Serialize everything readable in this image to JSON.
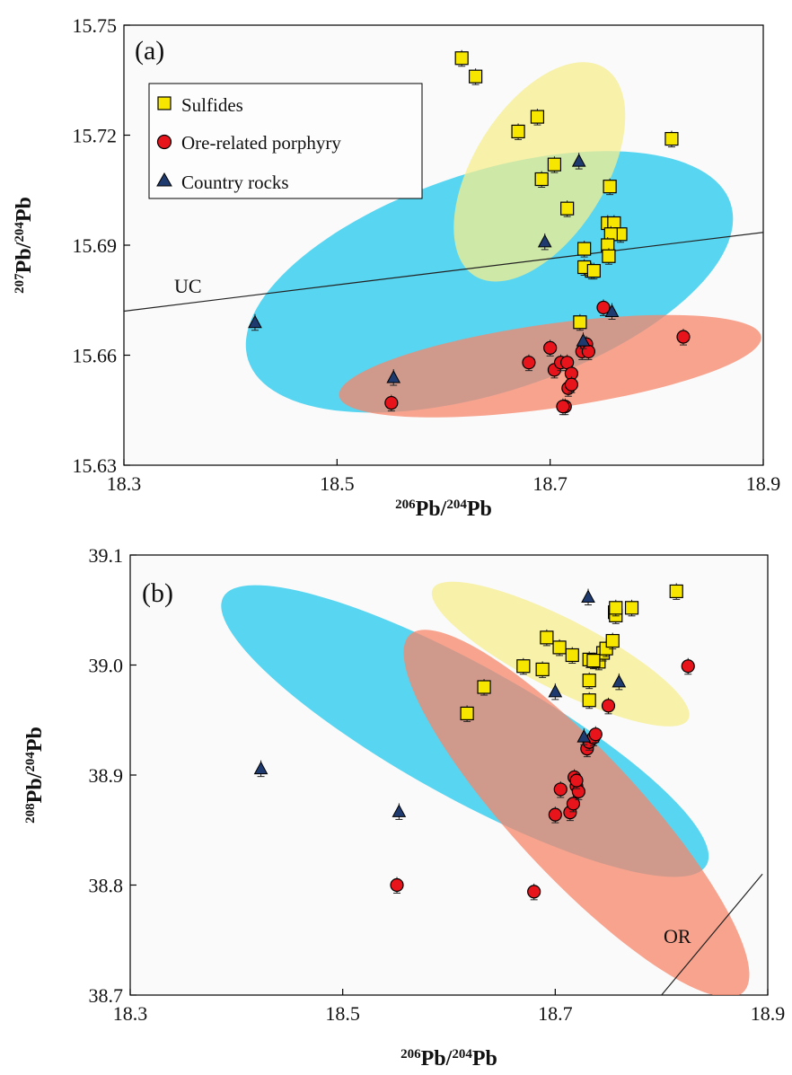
{
  "chart_data": [
    {
      "type": "scatter",
      "panel_label": "(a)",
      "xlabel_parts": [
        "206",
        "Pb/",
        "204",
        "Pb"
      ],
      "ylabel_parts": [
        "207",
        "Pb/",
        "204",
        "Pb"
      ],
      "xlim": [
        18.3,
        18.9
      ],
      "ylim": [
        15.63,
        15.75
      ],
      "xticks": [
        "18.3",
        "18.5",
        "18.7",
        "18.9"
      ],
      "yticks": [
        "15.63",
        "15.66",
        "15.69",
        "15.72",
        "15.75"
      ],
      "legend": {
        "placement": "top-left",
        "entries": [
          {
            "label": "Sulfides",
            "marker": "square",
            "color": "#f7e600"
          },
          {
            "label": "Ore-related porphyry",
            "marker": "circle",
            "color": "#e8141b"
          },
          {
            "label": "Country rocks",
            "marker": "triangle",
            "color": "#1e3a6e"
          }
        ]
      },
      "reference_lines": [
        {
          "label": "UC",
          "x": [
            18.3,
            18.9
          ],
          "y": [
            15.672,
            15.6935
          ]
        }
      ],
      "fields": [
        {
          "group": "Country rocks",
          "color": "#22c8ee",
          "cx": 18.643,
          "cy": 15.68,
          "rx": 0.238,
          "ry": 0.03,
          "angle_deg": 18
        },
        {
          "group": "Ore-related porphyry",
          "color": "#f7856a",
          "cx": 18.7,
          "cy": 15.657,
          "rx": 0.2,
          "ry": 0.0115,
          "angle_deg": 8
        },
        {
          "group": "Sulfides",
          "color": "#f5ee8e",
          "cx": 18.69,
          "cy": 15.71,
          "rx": 0.115,
          "ry": 0.018,
          "angle_deg": 58
        }
      ],
      "series": [
        {
          "name": "Sulfides",
          "marker": "square",
          "color": "#f7e600",
          "x": [
            18.617,
            18.63,
            18.67,
            18.688,
            18.692,
            18.704,
            18.716,
            18.756,
            18.814,
            18.728,
            18.754,
            18.76,
            18.766,
            18.757,
            18.754,
            18.739,
            18.732,
            18.741,
            18.732,
            18.755
          ],
          "y": [
            15.741,
            15.736,
            15.721,
            15.725,
            15.708,
            15.712,
            15.7,
            15.706,
            15.719,
            15.669,
            15.696,
            15.696,
            15.693,
            15.693,
            15.69,
            15.683,
            15.684,
            15.683,
            15.689,
            15.687
          ]
        },
        {
          "name": "Ore-related porphyry",
          "marker": "circle",
          "color": "#e8141b",
          "x": [
            18.551,
            18.68,
            18.7,
            18.704,
            18.71,
            18.716,
            18.72,
            18.717,
            18.714,
            18.712,
            18.72,
            18.73,
            18.734,
            18.736,
            18.75,
            18.825
          ],
          "y": [
            15.647,
            15.658,
            15.662,
            15.656,
            15.658,
            15.658,
            15.655,
            15.651,
            15.646,
            15.646,
            15.652,
            15.661,
            15.663,
            15.661,
            15.673,
            15.665
          ]
        },
        {
          "name": "Country rocks",
          "marker": "triangle",
          "color": "#1e3a6e",
          "x": [
            18.423,
            18.553,
            18.695,
            18.727,
            18.731,
            18.758
          ],
          "y": [
            15.669,
            15.654,
            15.691,
            15.713,
            15.664,
            15.672
          ]
        }
      ]
    },
    {
      "type": "scatter",
      "panel_label": "(b)",
      "xlabel_parts": [
        "206",
        "Pb/",
        "204",
        "Pb"
      ],
      "ylabel_parts": [
        "208",
        "Pb/",
        "204",
        "Pb"
      ],
      "xlim": [
        18.3,
        18.9
      ],
      "ylim": [
        38.7,
        39.1
      ],
      "xticks": [
        "18.3",
        "18.5",
        "18.7",
        "18.9"
      ],
      "yticks": [
        "38.7",
        "38.8",
        "38.9",
        "39.0",
        "39.1"
      ],
      "reference_lines": [
        {
          "label": "OR",
          "x": [
            18.8,
            18.895
          ],
          "y": [
            38.7,
            38.81
          ]
        }
      ],
      "fields": [
        {
          "group": "Country rocks",
          "color": "#22c8ee",
          "cx": 18.615,
          "cy": 38.94,
          "rx": 0.26,
          "ry": 0.06,
          "angle_deg": -29
        },
        {
          "group": "Ore-related porphyry",
          "color": "#f7856a",
          "cx": 18.72,
          "cy": 38.865,
          "rx": 0.23,
          "ry": 0.057,
          "angle_deg": -47
        },
        {
          "group": "Sulfides",
          "color": "#f5ee8e",
          "cx": 18.705,
          "cy": 39.01,
          "rx": 0.135,
          "ry": 0.032,
          "angle_deg": -27
        }
      ],
      "series": [
        {
          "name": "Sulfides",
          "marker": "square",
          "color": "#f7e600",
          "x": [
            18.617,
            18.633,
            18.67,
            18.688,
            18.692,
            18.704,
            18.716,
            18.732,
            18.741,
            18.745,
            18.748,
            18.732,
            18.732,
            18.736,
            18.754,
            18.756,
            18.757,
            18.757,
            18.772,
            18.814
          ],
          "y": [
            38.956,
            38.98,
            38.999,
            38.996,
            39.025,
            39.016,
            39.009,
            38.986,
            39.003,
            39.011,
            39.015,
            39.005,
            38.968,
            39.004,
            39.022,
            39.048,
            39.045,
            39.052,
            39.052,
            39.067
          ]
        },
        {
          "name": "Ore-related porphyry",
          "marker": "circle",
          "color": "#e8141b",
          "x": [
            18.551,
            18.68,
            18.7,
            18.705,
            18.714,
            18.718,
            18.717,
            18.72,
            18.722,
            18.72,
            18.73,
            18.732,
            18.736,
            18.738,
            18.75,
            18.825
          ],
          "y": [
            38.8,
            38.794,
            38.864,
            38.887,
            38.866,
            38.898,
            38.874,
            38.89,
            38.885,
            38.895,
            38.924,
            38.93,
            38.934,
            38.937,
            38.963,
            38.999
          ]
        },
        {
          "name": "Country rocks",
          "marker": "triangle",
          "color": "#1e3a6e",
          "x": [
            18.423,
            18.553,
            18.7,
            18.727,
            18.731,
            18.76
          ],
          "y": [
            38.906,
            38.867,
            38.976,
            38.935,
            39.062,
            38.985
          ]
        }
      ]
    }
  ]
}
